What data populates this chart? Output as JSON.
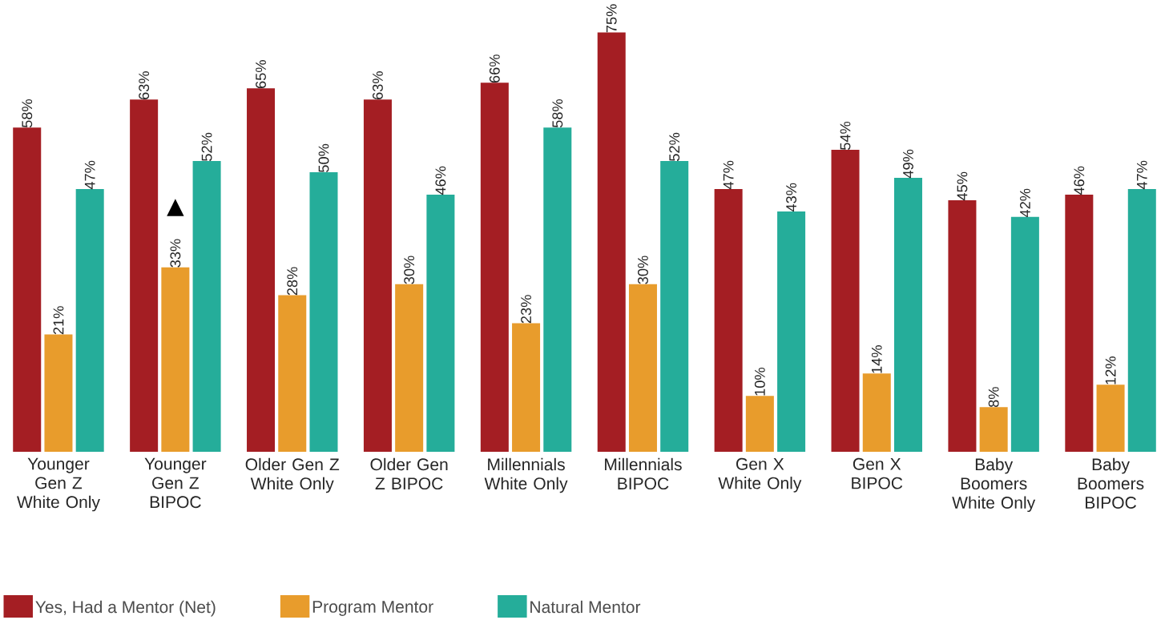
{
  "chart_data": {
    "type": "bar",
    "categories": [
      "Younger Gen Z White Only",
      "Younger Gen Z BIPOC",
      "Older Gen Z White Only",
      "Older Gen Z BIPOC",
      "Millennials White Only",
      "Millennials BIPOC",
      "Gen X White Only",
      "Gen X BIPOC",
      "Baby Boomers White Only",
      "Baby Boomers BIPOC"
    ],
    "series": [
      {
        "name": "Yes, Had a Mentor (Net)",
        "color": "#a41e23",
        "values": [
          58,
          63,
          65,
          63,
          66,
          75,
          47,
          54,
          45,
          46
        ],
        "value_labels": [
          "58%",
          "63%",
          "65%",
          "63%",
          "66%",
          "75%",
          "47%",
          "54%",
          "45%",
          "46%"
        ]
      },
      {
        "name": "Program Mentor",
        "color": "#e89c2c",
        "values": [
          21,
          33,
          28,
          30,
          23,
          30,
          10,
          14,
          8,
          12
        ],
        "value_labels": [
          "21%",
          "33%",
          "28%",
          "30%",
          "23%",
          "30%",
          "10%",
          "14%",
          "8%",
          "12%"
        ]
      },
      {
        "name": "Natural Mentor",
        "color": "#25ad9a",
        "values": [
          47,
          52,
          50,
          46,
          58,
          52,
          43,
          49,
          42,
          47
        ],
        "value_labels": [
          "47%",
          "52%",
          "50%",
          "46%",
          "58%",
          "52%",
          "43%",
          "49%",
          "42%",
          "47%"
        ]
      }
    ],
    "annotations": [
      {
        "text": "▲",
        "x": "Younger Gen Z BIPOC",
        "y": 33
      }
    ],
    "legend": "bottom left"
  }
}
